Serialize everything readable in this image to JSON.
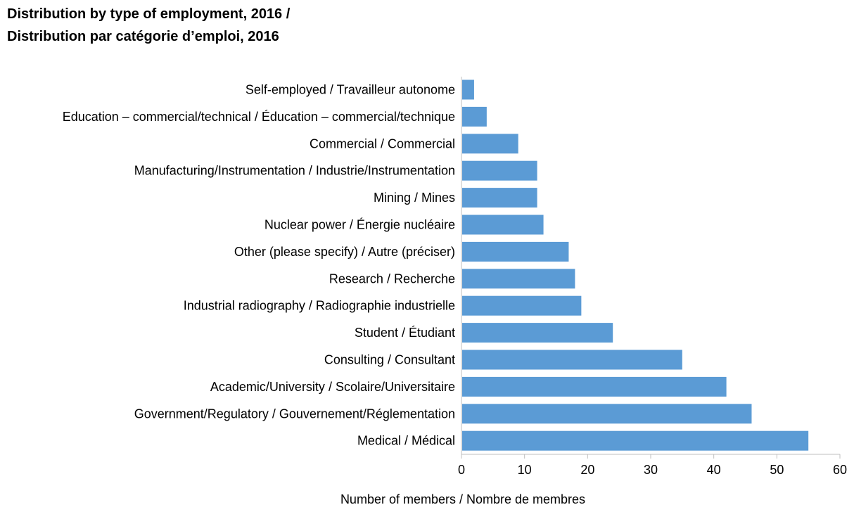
{
  "title_line1": "Distribution by type of employment, 2016 /",
  "title_line2": "Distribution par catégorie d’emploi, 2016",
  "chart_data": {
    "type": "bar",
    "orientation": "horizontal",
    "title": "Distribution by type of employment, 2016 / Distribution par catégorie d’emploi, 2016",
    "xlabel": "Number of members / Nombre de membres",
    "ylabel": "",
    "xlim": [
      0,
      60
    ],
    "xticks": [
      "0",
      "10",
      "20",
      "30",
      "40",
      "50",
      "60"
    ],
    "grid": false,
    "bar_color": "#5b9bd5",
    "categories": [
      "Self-employed / Travailleur autonome",
      "Education – commercial/technical / Éducation – commercial/technique",
      "Commercial / Commercial",
      "Manufacturing/Instrumentation / Industrie/Instrumentation",
      "Mining / Mines",
      "Nuclear power / Énergie nucléaire",
      "Other (please specify) / Autre (préciser)",
      "Research / Recherche",
      "Industrial radiography / Radiographie industrielle",
      "Student / Étudiant",
      "Consulting / Consultant",
      "Academic/University / Scolaire/Universitaire",
      "Government/Regulatory / Gouvernement/Réglementation",
      "Medical / Médical"
    ],
    "values": [
      2,
      4,
      9,
      12,
      12,
      13,
      17,
      18,
      19,
      24,
      35,
      42,
      46,
      55
    ]
  }
}
